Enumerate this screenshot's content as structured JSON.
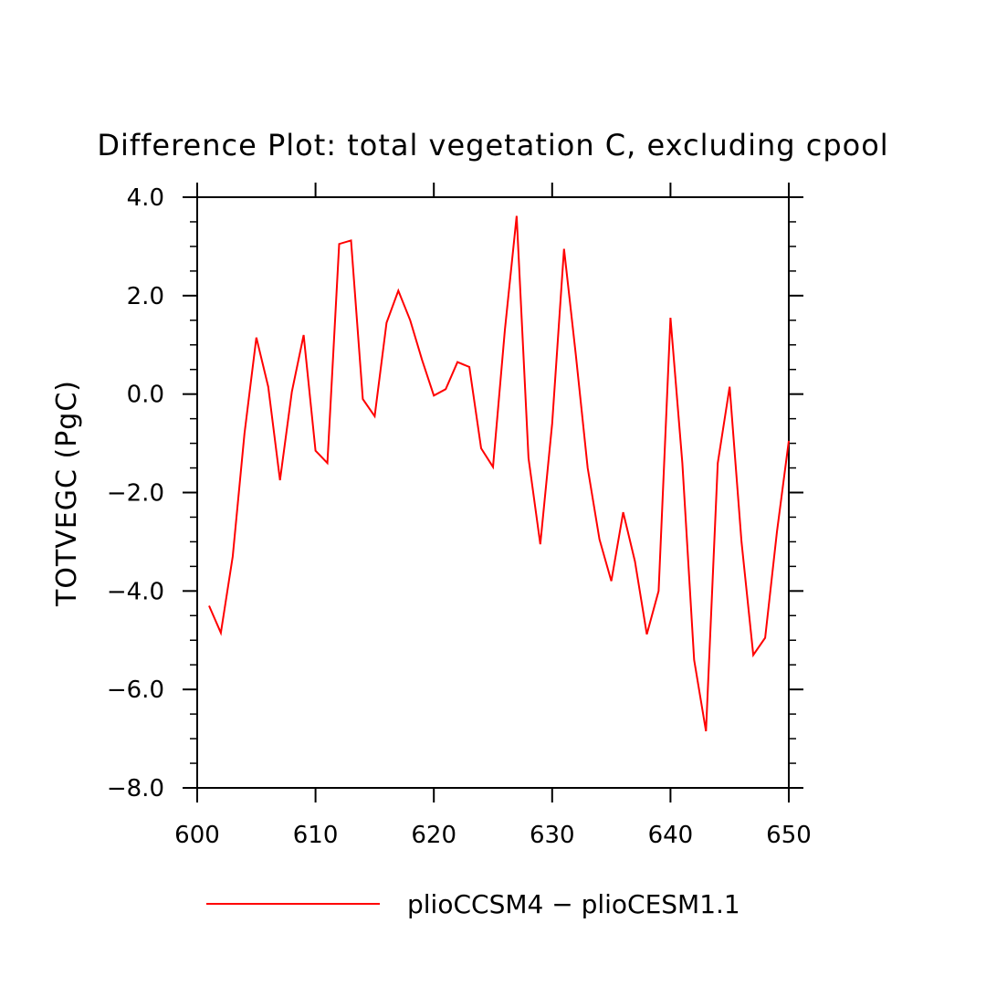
{
  "chart_data": {
    "type": "line",
    "title": "Difference Plot: total vegetation C, excluding cpool",
    "xlabel": "",
    "ylabel": "TOTVEGC  (PgC)",
    "xlim": [
      600,
      650
    ],
    "ylim": [
      -8.0,
      4.0
    ],
    "x_ticks": [
      600,
      610,
      620,
      630,
      640,
      650
    ],
    "x_tick_labels": [
      "600",
      "610",
      "620",
      "630",
      "640",
      "650"
    ],
    "y_ticks": [
      -8.0,
      -6.0,
      -4.0,
      -2.0,
      0.0,
      2.0,
      4.0
    ],
    "y_tick_labels": [
      "−8.0",
      "−6.0",
      "−4.0",
      "−2.0",
      "0.0",
      "2.0",
      "4.0"
    ],
    "grid": false,
    "legend_position": "bottom",
    "series": [
      {
        "name": "plioCCSM4 − plioCESM1.1",
        "color": "#ff0000",
        "x": [
          601,
          602,
          603,
          604,
          605,
          606,
          607,
          608,
          609,
          610,
          611,
          612,
          613,
          614,
          615,
          616,
          617,
          618,
          619,
          620,
          621,
          622,
          623,
          624,
          625,
          626,
          627,
          628,
          629,
          630,
          631,
          632,
          633,
          634,
          635,
          636,
          637,
          638,
          639,
          640,
          641,
          642,
          643,
          644,
          645,
          646,
          647,
          648,
          649,
          650
        ],
        "values": [
          -4.3,
          -4.85,
          -3.3,
          -0.8,
          1.15,
          0.15,
          -1.75,
          0.05,
          1.2,
          -1.15,
          -1.4,
          3.05,
          3.12,
          -0.1,
          -0.45,
          1.45,
          2.1,
          1.5,
          0.7,
          -0.03,
          0.1,
          0.65,
          0.55,
          -1.1,
          -1.48,
          1.3,
          3.62,
          -1.3,
          -3.05,
          -0.6,
          2.95,
          0.8,
          -1.5,
          -2.95,
          -3.8,
          -2.4,
          -3.4,
          -4.88,
          -4.0,
          1.55,
          -1.4,
          -5.4,
          -6.85,
          -1.4,
          0.15,
          -3.0,
          -5.3,
          -4.95,
          -2.8,
          -0.95
        ]
      }
    ]
  }
}
